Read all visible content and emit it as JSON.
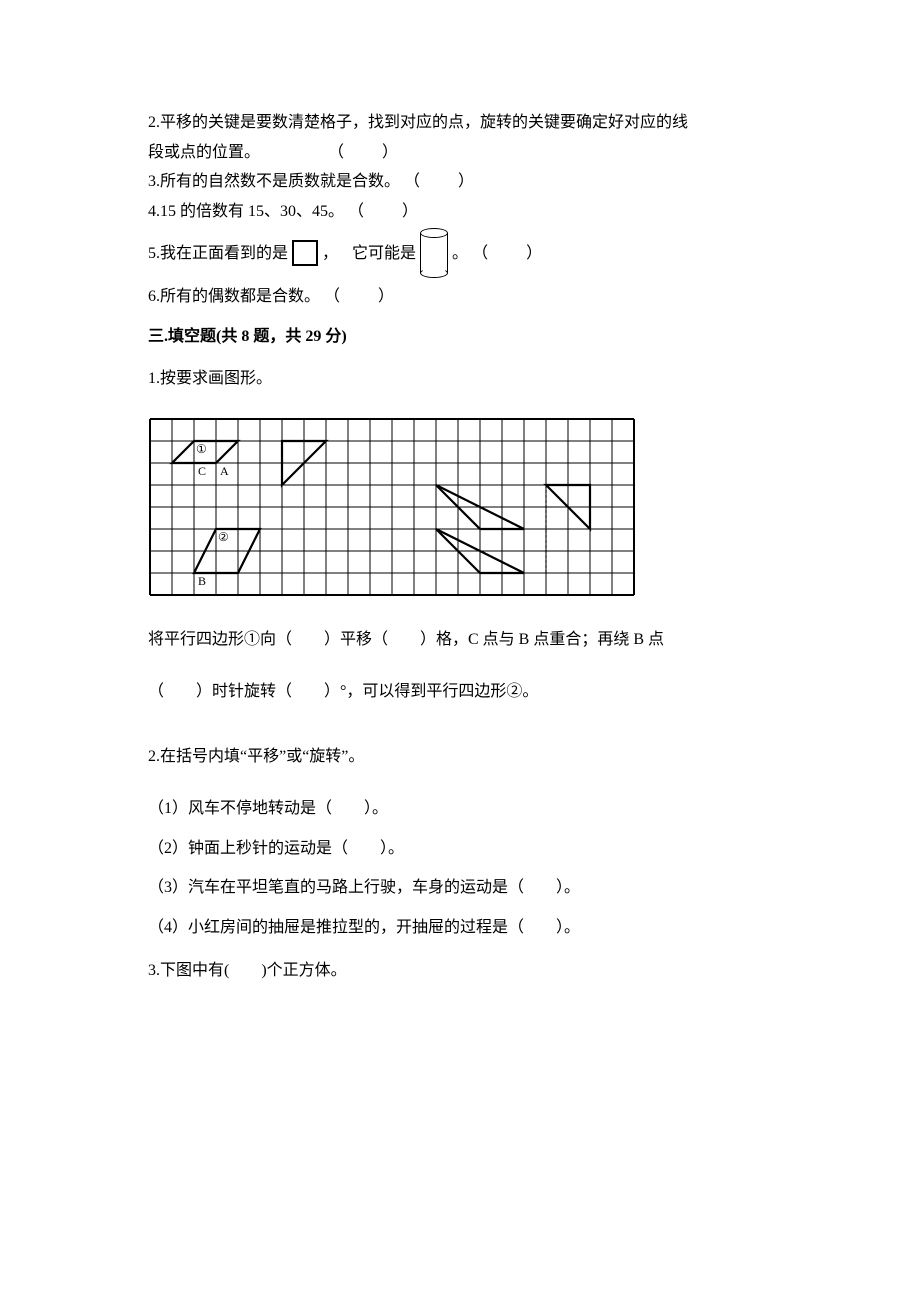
{
  "judgment": {
    "q2": {
      "text_a": "2.平移的关键是要数清楚格子，找到对应的点，旋转的关键要确定好对应的线",
      "text_b": "段或点的位置。",
      "paren": "（　　）"
    },
    "q3": {
      "text": "3.所有的自然数不是质数就是合数。",
      "paren": "（　　）"
    },
    "q4": {
      "text": "4.15 的倍数有 15、30、45。",
      "paren": "（　　）"
    },
    "q5": {
      "lead": "5.我在正面看到的是",
      "comma": "，",
      "mid": "它可能是",
      "period": "。",
      "paren": "（　　）"
    },
    "q6": {
      "text": "6.所有的偶数都是合数。",
      "paren": "（　　）"
    }
  },
  "section3_title": "三.填空题(共 8 题，共 29 分)",
  "fill": {
    "q1": {
      "title": "1.按要求画图形。",
      "line1_a": "将平行四边形①向（　　）平移（　　）格，C 点与 B 点重合；再绕 B 点",
      "line2_a": "（　　）时针旋转（　　）°，可以得到平行四边形②。"
    },
    "q2": {
      "title": "2.在括号内填“平移”或“旋转”。",
      "s1": "（1）风车不停地转动是（　　）。",
      "s2": "（2）钟面上秒针的运动是（　　）。",
      "s3": "（3）汽车在平坦笔直的马路上行驶，车身的运动是（　　）。",
      "s4": "（4）小红房间的抽屉是推拉型的，开抽屉的过程是（　　）。"
    },
    "q3": {
      "title": "3.下图中有(　　)个正方体。"
    }
  },
  "grid": {
    "cell": 22,
    "cols": 22,
    "rows": 8,
    "border_color": "#000000",
    "labels": {
      "circ1": "①",
      "circ2": "②",
      "A": "A",
      "B": "B",
      "C": "C"
    },
    "para1": [
      [
        2,
        1
      ],
      [
        4,
        1
      ],
      [
        3,
        2
      ],
      [
        1,
        2
      ]
    ],
    "para2": [
      [
        2,
        7
      ],
      [
        4,
        7
      ],
      [
        5,
        5
      ],
      [
        3,
        5
      ]
    ],
    "tri1": [
      [
        6,
        1
      ],
      [
        8,
        1
      ],
      [
        6,
        3
      ]
    ],
    "tri2": [
      [
        13,
        3
      ],
      [
        15,
        5
      ],
      [
        17,
        5
      ]
    ],
    "tri3": [
      [
        15,
        7
      ],
      [
        13,
        5
      ],
      [
        17,
        7
      ]
    ],
    "tri4": [
      [
        18,
        3
      ],
      [
        20,
        5
      ],
      [
        20,
        3
      ]
    ],
    "pointA": [
      3,
      2
    ],
    "pointC": [
      2,
      2
    ],
    "pointB": [
      2,
      7
    ],
    "circ1_pos": [
      2,
      1
    ],
    "circ2_pos": [
      3,
      5
    ]
  }
}
